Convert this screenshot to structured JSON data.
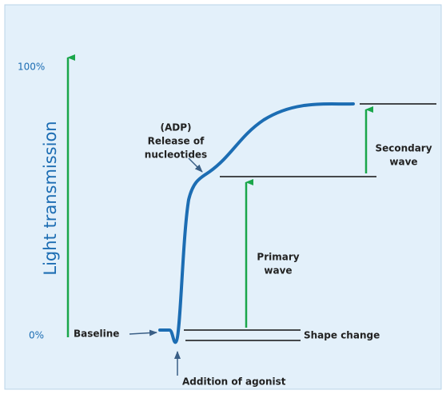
{
  "axis": {
    "top_label": "100%",
    "bottom_label": "0%",
    "title": "Light transmission"
  },
  "annotations": {
    "release": [
      "(ADP)",
      "Release of",
      "nucleotides"
    ],
    "baseline": "Baseline",
    "agonist": "Addition of agonist",
    "shape_change": "Shape change",
    "primary": [
      "Primary",
      "wave"
    ],
    "secondary": [
      "Secondary",
      "wave"
    ]
  }
}
